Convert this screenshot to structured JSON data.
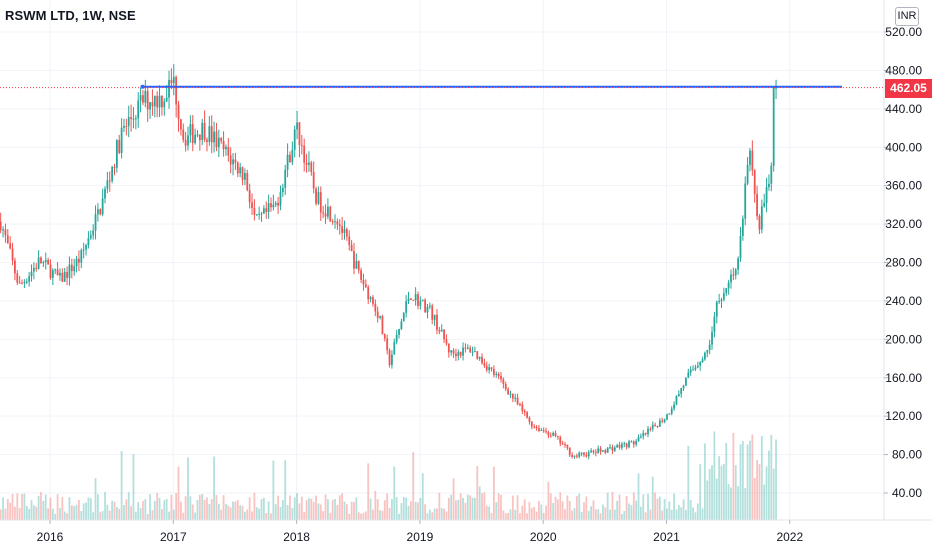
{
  "header": {
    "symbol_title": "RSWM LTD, 1W, NSE",
    "currency_button": "INR"
  },
  "last_price_label": "462.05",
  "colors": {
    "up": "#26a69a",
    "down": "#ef5350",
    "trendline": "#2962ff",
    "last_price": "#f23645",
    "axis_border": "#e0e3eb"
  },
  "chart_data": {
    "type": "candlestick",
    "title": "RSWM LTD, 1W, NSE",
    "y_axis_ticks": [
      "520.00",
      "480.00",
      "440.00",
      "400.00",
      "360.00",
      "320.00",
      "280.00",
      "240.00",
      "200.00",
      "160.00",
      "120.00",
      "80.00",
      "40.00"
    ],
    "x_axis_ticks": [
      "2016",
      "2017",
      "2018",
      "2019",
      "2020",
      "2021",
      "2022"
    ],
    "ylim": [
      40,
      520
    ],
    "last_price": 462.05,
    "horizontal_line_level": 463,
    "grid": true,
    "price_path": [
      [
        "2015-08",
        330
      ],
      [
        "2015-10",
        255
      ],
      [
        "2015-12",
        282
      ],
      [
        "2016-02",
        262
      ],
      [
        "2016-04",
        285
      ],
      [
        "2016-06",
        340
      ],
      [
        "2016-08",
        415
      ],
      [
        "2016-10",
        448
      ],
      [
        "2016-12",
        452
      ],
      [
        "2017-01",
        470
      ],
      [
        "2017-02",
        410
      ],
      [
        "2017-04",
        420
      ],
      [
        "2017-06",
        395
      ],
      [
        "2017-08",
        370
      ],
      [
        "2017-09",
        320
      ],
      [
        "2017-11",
        340
      ],
      [
        "2018-01",
        420
      ],
      [
        "2018-03",
        345
      ],
      [
        "2018-05",
        325
      ],
      [
        "2018-07",
        270
      ],
      [
        "2018-09",
        225
      ],
      [
        "2018-10",
        175
      ],
      [
        "2018-12",
        248
      ],
      [
        "2019-02",
        230
      ],
      [
        "2019-04",
        185
      ],
      [
        "2019-06",
        190
      ],
      [
        "2019-09",
        155
      ],
      [
        "2019-12",
        110
      ],
      [
        "2020-02",
        100
      ],
      [
        "2020-04",
        78
      ],
      [
        "2020-07",
        85
      ],
      [
        "2020-10",
        93
      ],
      [
        "2021-01",
        120
      ],
      [
        "2021-03",
        160
      ],
      [
        "2021-05",
        190
      ],
      [
        "2021-06",
        240
      ],
      [
        "2021-08",
        280
      ],
      [
        "2021-09",
        400
      ],
      [
        "2021-10",
        320
      ],
      [
        "2021-11",
        360
      ],
      [
        "2021-12",
        462
      ]
    ],
    "volume_profile": "low baseline with spikes in 2021"
  }
}
